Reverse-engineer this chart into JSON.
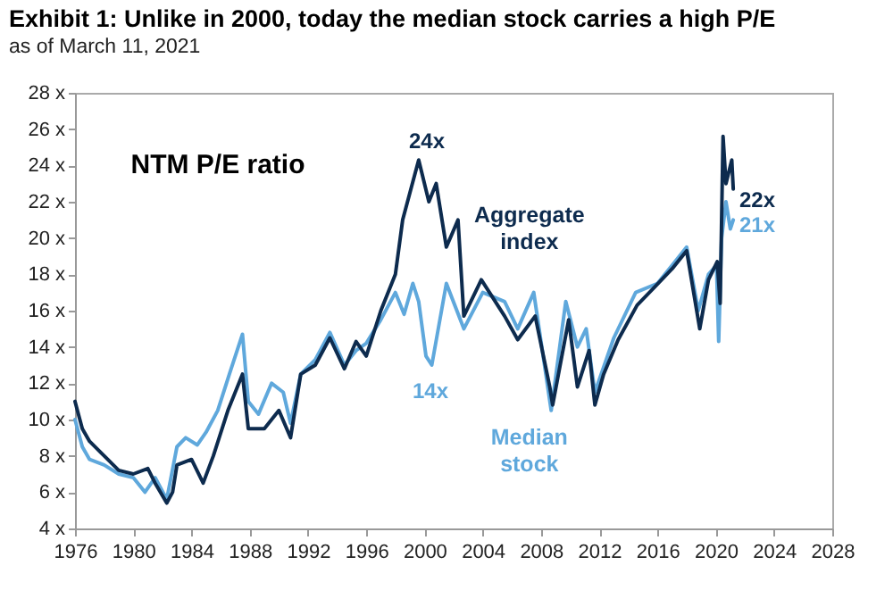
{
  "chart_data": {
    "type": "line",
    "title": "Exhibit 1: Unlike in 2000, today the median stock carries a high P/E",
    "subtitle": "as of March 11, 2021",
    "annotations": [
      "NTM P/E ratio",
      "24x",
      "14x",
      "22x",
      "21x"
    ],
    "xlim": [
      1976,
      2028
    ],
    "xticks": [
      1976,
      1980,
      1984,
      1988,
      1992,
      1996,
      2000,
      2004,
      2008,
      2012,
      2016,
      2020,
      2024,
      2028
    ],
    "ylim": [
      4,
      28
    ],
    "yticks": [
      {
        "value": 4,
        "label": "4 x"
      },
      {
        "value": 6,
        "label": "6 x"
      },
      {
        "value": 8,
        "label": "8 x"
      },
      {
        "value": 10,
        "label": "10 x"
      },
      {
        "value": 12,
        "label": "12 x"
      },
      {
        "value": 14,
        "label": "14 x"
      },
      {
        "value": 16,
        "label": "16 x"
      },
      {
        "value": 18,
        "label": "18 x"
      },
      {
        "value": 20,
        "label": "20 x"
      },
      {
        "value": 22,
        "label": "22 x"
      },
      {
        "value": 24,
        "label": "24 x"
      },
      {
        "value": 26,
        "label": "26 x"
      },
      {
        "value": 28,
        "label": "28 x"
      }
    ],
    "series": [
      {
        "name": "Median stock",
        "color": "#5fa8dc",
        "x": [
          1976,
          1976.5,
          1977,
          1978,
          1979,
          1980,
          1980.8,
          1981.5,
          1982.3,
          1983,
          1983.6,
          1984.4,
          1985,
          1985.8,
          1986.6,
          1987.5,
          1987.9,
          1988.6,
          1989.5,
          1990.3,
          1990.8,
          1991.5,
          1992.5,
          1993.5,
          1994.5,
          1995.3,
          1996,
          1997,
          1998,
          1998.6,
          1999.2,
          1999.6,
          2000.1,
          2000.5,
          2001.5,
          2002.7,
          2004,
          2005.5,
          2006.4,
          2007.5,
          2008.7,
          2009.7,
          2010.5,
          2011.1,
          2011.7,
          2013,
          2014.5,
          2016,
          2017,
          2018,
          2018.8,
          2019.5,
          2020.05,
          2020.2,
          2020.4,
          2020.7,
          2021,
          2021.2
        ],
        "values": [
          10,
          8.5,
          7.8,
          7.5,
          7,
          6.8,
          6,
          6.8,
          5.6,
          8.5,
          9,
          8.6,
          9.3,
          10.5,
          12.5,
          14.7,
          11,
          10.3,
          12,
          11.5,
          9.8,
          12.5,
          13.3,
          14.8,
          13,
          13.8,
          14.2,
          15.5,
          17,
          15.8,
          17.5,
          16.5,
          13.5,
          13,
          17.5,
          15,
          17,
          16.5,
          15,
          17,
          10.5,
          16.5,
          14,
          15,
          11.5,
          14.5,
          17,
          17.5,
          18.5,
          19.5,
          16,
          18,
          18.5,
          14.3,
          20,
          22,
          20.5,
          21
        ]
      },
      {
        "name": "Aggregate index",
        "color": "#0d2b4e",
        "x": [
          1976,
          1976.5,
          1977,
          1978,
          1979,
          1980,
          1981,
          1981.5,
          1982.3,
          1982.7,
          1983,
          1984,
          1984.8,
          1985.5,
          1986.5,
          1987.5,
          1987.9,
          1989,
          1990,
          1990.8,
          1991.5,
          1992.5,
          1993.5,
          1994.5,
          1995.3,
          1996,
          1997,
          1998,
          1998.5,
          1999,
          1999.6,
          2000.3,
          2000.8,
          2001.5,
          2002.3,
          2002.7,
          2003.9,
          2005.5,
          2006.4,
          2007.6,
          2008.6,
          2008.8,
          2009.9,
          2010.5,
          2011.3,
          2011.7,
          2012.3,
          2013.3,
          2014.6,
          2015.8,
          2017,
          2018,
          2018.9,
          2019.5,
          2020.1,
          2020.3,
          2020.5,
          2020.7,
          2021.1,
          2021.2
        ],
        "values": [
          11,
          9.5,
          8.8,
          8,
          7.2,
          7,
          7.3,
          6.5,
          5.4,
          6,
          7.5,
          7.8,
          6.5,
          8,
          10.5,
          12.5,
          9.5,
          9.5,
          10.5,
          9,
          12.5,
          13,
          14.5,
          12.8,
          14.3,
          13.5,
          16,
          18,
          21,
          22.5,
          24.3,
          22,
          23,
          19.5,
          21,
          15.7,
          17.7,
          15.7,
          14.4,
          15.7,
          11.8,
          10.8,
          15.5,
          11.8,
          13.8,
          10.8,
          12.5,
          14.4,
          16.3,
          17.3,
          18.3,
          19.3,
          15,
          17.7,
          18.7,
          16.4,
          25.6,
          23,
          24.3,
          22.7
        ]
      }
    ]
  }
}
